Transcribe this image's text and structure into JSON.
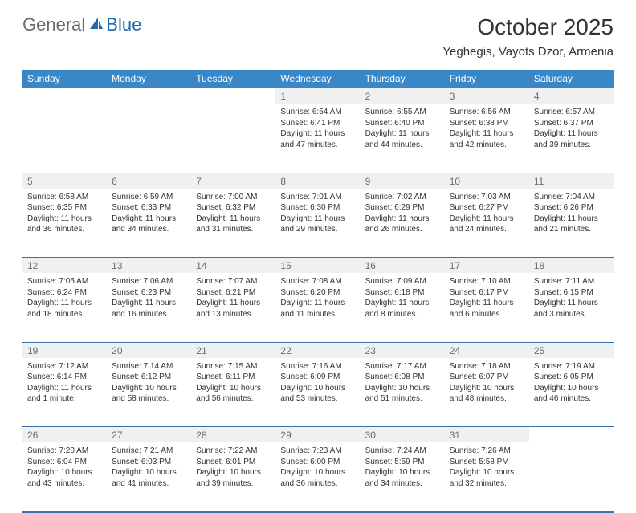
{
  "logo": {
    "general": "General",
    "blue": "Blue",
    "icon_fill": "#2268b0"
  },
  "title": "October 2025",
  "location": "Yeghegis, Vayots Dzor, Armenia",
  "header_bg": "#3a87c8",
  "header_fg": "#ffffff",
  "daynum_bg": "#f0f0f0",
  "daynum_fg": "#6d6d6d",
  "border_color": "#3a6fa8",
  "weekdays": [
    "Sunday",
    "Monday",
    "Tuesday",
    "Wednesday",
    "Thursday",
    "Friday",
    "Saturday"
  ],
  "weeks": [
    {
      "nums": [
        "",
        "",
        "",
        "1",
        "2",
        "3",
        "4"
      ],
      "cells": [
        null,
        null,
        null,
        {
          "sunrise": "Sunrise: 6:54 AM",
          "sunset": "Sunset: 6:41 PM",
          "d1": "Daylight: 11 hours",
          "d2": "and 47 minutes."
        },
        {
          "sunrise": "Sunrise: 6:55 AM",
          "sunset": "Sunset: 6:40 PM",
          "d1": "Daylight: 11 hours",
          "d2": "and 44 minutes."
        },
        {
          "sunrise": "Sunrise: 6:56 AM",
          "sunset": "Sunset: 6:38 PM",
          "d1": "Daylight: 11 hours",
          "d2": "and 42 minutes."
        },
        {
          "sunrise": "Sunrise: 6:57 AM",
          "sunset": "Sunset: 6:37 PM",
          "d1": "Daylight: 11 hours",
          "d2": "and 39 minutes."
        }
      ]
    },
    {
      "nums": [
        "5",
        "6",
        "7",
        "8",
        "9",
        "10",
        "11"
      ],
      "cells": [
        {
          "sunrise": "Sunrise: 6:58 AM",
          "sunset": "Sunset: 6:35 PM",
          "d1": "Daylight: 11 hours",
          "d2": "and 36 minutes."
        },
        {
          "sunrise": "Sunrise: 6:59 AM",
          "sunset": "Sunset: 6:33 PM",
          "d1": "Daylight: 11 hours",
          "d2": "and 34 minutes."
        },
        {
          "sunrise": "Sunrise: 7:00 AM",
          "sunset": "Sunset: 6:32 PM",
          "d1": "Daylight: 11 hours",
          "d2": "and 31 minutes."
        },
        {
          "sunrise": "Sunrise: 7:01 AM",
          "sunset": "Sunset: 6:30 PM",
          "d1": "Daylight: 11 hours",
          "d2": "and 29 minutes."
        },
        {
          "sunrise": "Sunrise: 7:02 AM",
          "sunset": "Sunset: 6:29 PM",
          "d1": "Daylight: 11 hours",
          "d2": "and 26 minutes."
        },
        {
          "sunrise": "Sunrise: 7:03 AM",
          "sunset": "Sunset: 6:27 PM",
          "d1": "Daylight: 11 hours",
          "d2": "and 24 minutes."
        },
        {
          "sunrise": "Sunrise: 7:04 AM",
          "sunset": "Sunset: 6:26 PM",
          "d1": "Daylight: 11 hours",
          "d2": "and 21 minutes."
        }
      ]
    },
    {
      "nums": [
        "12",
        "13",
        "14",
        "15",
        "16",
        "17",
        "18"
      ],
      "cells": [
        {
          "sunrise": "Sunrise: 7:05 AM",
          "sunset": "Sunset: 6:24 PM",
          "d1": "Daylight: 11 hours",
          "d2": "and 18 minutes."
        },
        {
          "sunrise": "Sunrise: 7:06 AM",
          "sunset": "Sunset: 6:23 PM",
          "d1": "Daylight: 11 hours",
          "d2": "and 16 minutes."
        },
        {
          "sunrise": "Sunrise: 7:07 AM",
          "sunset": "Sunset: 6:21 PM",
          "d1": "Daylight: 11 hours",
          "d2": "and 13 minutes."
        },
        {
          "sunrise": "Sunrise: 7:08 AM",
          "sunset": "Sunset: 6:20 PM",
          "d1": "Daylight: 11 hours",
          "d2": "and 11 minutes."
        },
        {
          "sunrise": "Sunrise: 7:09 AM",
          "sunset": "Sunset: 6:18 PM",
          "d1": "Daylight: 11 hours",
          "d2": "and 8 minutes."
        },
        {
          "sunrise": "Sunrise: 7:10 AM",
          "sunset": "Sunset: 6:17 PM",
          "d1": "Daylight: 11 hours",
          "d2": "and 6 minutes."
        },
        {
          "sunrise": "Sunrise: 7:11 AM",
          "sunset": "Sunset: 6:15 PM",
          "d1": "Daylight: 11 hours",
          "d2": "and 3 minutes."
        }
      ]
    },
    {
      "nums": [
        "19",
        "20",
        "21",
        "22",
        "23",
        "24",
        "25"
      ],
      "cells": [
        {
          "sunrise": "Sunrise: 7:12 AM",
          "sunset": "Sunset: 6:14 PM",
          "d1": "Daylight: 11 hours",
          "d2": "and 1 minute."
        },
        {
          "sunrise": "Sunrise: 7:14 AM",
          "sunset": "Sunset: 6:12 PM",
          "d1": "Daylight: 10 hours",
          "d2": "and 58 minutes."
        },
        {
          "sunrise": "Sunrise: 7:15 AM",
          "sunset": "Sunset: 6:11 PM",
          "d1": "Daylight: 10 hours",
          "d2": "and 56 minutes."
        },
        {
          "sunrise": "Sunrise: 7:16 AM",
          "sunset": "Sunset: 6:09 PM",
          "d1": "Daylight: 10 hours",
          "d2": "and 53 minutes."
        },
        {
          "sunrise": "Sunrise: 7:17 AM",
          "sunset": "Sunset: 6:08 PM",
          "d1": "Daylight: 10 hours",
          "d2": "and 51 minutes."
        },
        {
          "sunrise": "Sunrise: 7:18 AM",
          "sunset": "Sunset: 6:07 PM",
          "d1": "Daylight: 10 hours",
          "d2": "and 48 minutes."
        },
        {
          "sunrise": "Sunrise: 7:19 AM",
          "sunset": "Sunset: 6:05 PM",
          "d1": "Daylight: 10 hours",
          "d2": "and 46 minutes."
        }
      ]
    },
    {
      "nums": [
        "26",
        "27",
        "28",
        "29",
        "30",
        "31",
        ""
      ],
      "cells": [
        {
          "sunrise": "Sunrise: 7:20 AM",
          "sunset": "Sunset: 6:04 PM",
          "d1": "Daylight: 10 hours",
          "d2": "and 43 minutes."
        },
        {
          "sunrise": "Sunrise: 7:21 AM",
          "sunset": "Sunset: 6:03 PM",
          "d1": "Daylight: 10 hours",
          "d2": "and 41 minutes."
        },
        {
          "sunrise": "Sunrise: 7:22 AM",
          "sunset": "Sunset: 6:01 PM",
          "d1": "Daylight: 10 hours",
          "d2": "and 39 minutes."
        },
        {
          "sunrise": "Sunrise: 7:23 AM",
          "sunset": "Sunset: 6:00 PM",
          "d1": "Daylight: 10 hours",
          "d2": "and 36 minutes."
        },
        {
          "sunrise": "Sunrise: 7:24 AM",
          "sunset": "Sunset: 5:59 PM",
          "d1": "Daylight: 10 hours",
          "d2": "and 34 minutes."
        },
        {
          "sunrise": "Sunrise: 7:26 AM",
          "sunset": "Sunset: 5:58 PM",
          "d1": "Daylight: 10 hours",
          "d2": "and 32 minutes."
        },
        null
      ]
    }
  ]
}
